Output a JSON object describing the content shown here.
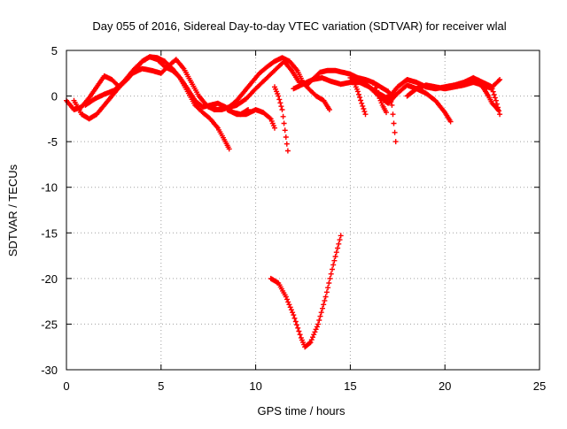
{
  "chart_data": {
    "type": "scatter",
    "title": "Day 055 of 2016, Sidereal Day-to-day VTEC variation (SDTVAR) for receiver wlal",
    "xlabel": "GPS time / hours",
    "ylabel": "SDTVAR / TECUs",
    "xlim": [
      0,
      25
    ],
    "ylim": [
      -30,
      5
    ],
    "xticks": [
      0,
      5,
      10,
      15,
      20,
      25
    ],
    "yticks": [
      5,
      0,
      -5,
      -10,
      -15,
      -20,
      -25,
      -30
    ],
    "grid": true,
    "marker": "+",
    "color": "#ff0000",
    "series": [
      {
        "name": "wlal",
        "tracks": [
          [
            [
              0.0,
              -0.5
            ],
            [
              0.4,
              -1.5
            ],
            [
              0.8,
              -1.2
            ],
            [
              1.2,
              -0.2
            ],
            [
              1.6,
              1.0
            ],
            [
              2.0,
              2.2
            ],
            [
              2.4,
              1.8
            ],
            [
              2.8,
              1.0
            ],
            [
              3.2,
              1.8
            ],
            [
              3.6,
              2.8
            ],
            [
              4.0,
              3.8
            ],
            [
              4.4,
              4.3
            ],
            [
              4.8,
              4.0
            ],
            [
              5.2,
              3.2
            ],
            [
              5.6,
              2.8
            ],
            [
              6.0,
              2.0
            ],
            [
              6.4,
              0.8
            ],
            [
              6.8,
              -0.5
            ],
            [
              7.2,
              -1.2
            ],
            [
              7.6,
              -1.0
            ],
            [
              8.0,
              -0.8
            ],
            [
              8.4,
              -1.2
            ],
            [
              8.8,
              -1.8
            ],
            [
              9.2,
              -2.0
            ],
            [
              9.6,
              -1.5
            ]
          ],
          [
            [
              0.4,
              -0.5
            ],
            [
              0.8,
              -2.0
            ],
            [
              1.2,
              -2.5
            ],
            [
              1.6,
              -2.0
            ],
            [
              2.0,
              -1.0
            ],
            [
              2.4,
              0.0
            ],
            [
              2.8,
              1.0
            ],
            [
              3.2,
              2.0
            ],
            [
              3.6,
              3.0
            ],
            [
              4.0,
              3.8
            ],
            [
              4.4,
              4.3
            ],
            [
              4.8,
              4.2
            ],
            [
              5.2,
              3.8
            ],
            [
              5.6,
              3.0
            ],
            [
              6.0,
              2.0
            ],
            [
              6.4,
              0.5
            ],
            [
              6.8,
              -1.0
            ],
            [
              7.2,
              -1.8
            ],
            [
              7.6,
              -2.5
            ],
            [
              8.0,
              -3.5
            ],
            [
              8.4,
              -5.0
            ],
            [
              8.6,
              -5.8
            ]
          ],
          [
            [
              1.0,
              -1.0
            ],
            [
              1.5,
              -0.3
            ],
            [
              2.0,
              0.2
            ],
            [
              2.5,
              0.6
            ],
            [
              3.0,
              1.5
            ],
            [
              3.5,
              2.5
            ],
            [
              4.0,
              3.0
            ],
            [
              4.5,
              2.8
            ],
            [
              5.0,
              2.5
            ],
            [
              5.5,
              3.5
            ],
            [
              5.8,
              4.0
            ],
            [
              6.2,
              3.0
            ],
            [
              6.6,
              1.5
            ],
            [
              7.0,
              0.0
            ],
            [
              7.4,
              -1.0
            ],
            [
              7.8,
              -1.5
            ],
            [
              8.2,
              -1.5
            ],
            [
              8.6,
              -1.2
            ],
            [
              9.0,
              -0.5
            ],
            [
              9.4,
              0.5
            ],
            [
              9.8,
              1.5
            ],
            [
              10.2,
              2.5
            ],
            [
              10.6,
              3.2
            ],
            [
              11.0,
              3.8
            ],
            [
              11.4,
              4.2
            ],
            [
              11.8,
              3.8
            ],
            [
              12.2,
              2.8
            ],
            [
              12.5,
              1.5
            ],
            [
              12.8,
              0.8
            ],
            [
              13.2,
              0.0
            ],
            [
              13.6,
              -0.5
            ],
            [
              13.9,
              -1.5
            ]
          ],
          [
            [
              7.5,
              -1.2
            ],
            [
              8.0,
              -1.5
            ],
            [
              8.5,
              -1.3
            ],
            [
              9.0,
              -1.0
            ],
            [
              9.5,
              -0.3
            ],
            [
              10.0,
              0.8
            ],
            [
              10.5,
              1.8
            ],
            [
              11.0,
              2.8
            ],
            [
              11.5,
              3.8
            ],
            [
              11.9,
              2.8
            ],
            [
              12.3,
              1.5
            ],
            [
              12.7,
              1.2
            ],
            [
              13.0,
              1.8
            ],
            [
              13.4,
              2.6
            ],
            [
              13.8,
              2.8
            ],
            [
              14.2,
              2.8
            ],
            [
              14.6,
              2.6
            ],
            [
              15.0,
              2.4
            ],
            [
              15.4,
              2.0
            ],
            [
              15.8,
              1.8
            ],
            [
              16.2,
              1.5
            ],
            [
              16.6,
              1.0
            ],
            [
              17.0,
              0.5
            ],
            [
              17.2,
              0.0
            ]
          ],
          [
            [
              8.5,
              -1.5
            ],
            [
              9.0,
              -2.0
            ],
            [
              9.5,
              -2.0
            ],
            [
              10.0,
              -1.5
            ],
            [
              10.4,
              -1.8
            ],
            [
              10.8,
              -2.5
            ],
            [
              11.0,
              -3.5
            ]
          ],
          [
            [
              11.0,
              1.0
            ],
            [
              11.2,
              0.0
            ],
            [
              11.4,
              -1.5
            ],
            [
              11.5,
              -3.0
            ],
            [
              11.6,
              -4.5
            ],
            [
              11.7,
              -6.0
            ]
          ],
          [
            [
              10.8,
              -20.0
            ],
            [
              11.2,
              -20.5
            ],
            [
              11.6,
              -22.0
            ],
            [
              12.0,
              -24.0
            ],
            [
              12.4,
              -26.5
            ],
            [
              12.6,
              -27.5
            ],
            [
              12.9,
              -27.0
            ],
            [
              13.3,
              -25.0
            ],
            [
              13.7,
              -22.0
            ],
            [
              14.1,
              -18.5
            ],
            [
              14.5,
              -15.3
            ]
          ],
          [
            [
              12.0,
              0.8
            ],
            [
              12.5,
              1.3
            ],
            [
              13.0,
              1.8
            ],
            [
              13.5,
              2.0
            ],
            [
              14.0,
              1.6
            ],
            [
              14.5,
              1.3
            ],
            [
              15.0,
              1.5
            ],
            [
              15.5,
              1.5
            ],
            [
              16.0,
              1.0
            ],
            [
              16.5,
              0.0
            ],
            [
              17.0,
              -0.8
            ],
            [
              17.5,
              0.3
            ],
            [
              18.0,
              1.2
            ],
            [
              18.5,
              0.8
            ],
            [
              19.0,
              0.3
            ],
            [
              19.5,
              -0.5
            ],
            [
              20.0,
              -1.8
            ],
            [
              20.3,
              -2.8
            ]
          ],
          [
            [
              15.0,
              2.0
            ],
            [
              15.5,
              1.8
            ],
            [
              16.0,
              1.0
            ],
            [
              16.5,
              0.3
            ],
            [
              17.0,
              -0.3
            ],
            [
              17.5,
              1.0
            ],
            [
              18.0,
              1.8
            ],
            [
              18.5,
              1.5
            ],
            [
              19.0,
              1.0
            ],
            [
              19.5,
              0.8
            ],
            [
              20.0,
              1.0
            ],
            [
              20.5,
              1.2
            ],
            [
              21.0,
              1.5
            ],
            [
              21.5,
              2.0
            ],
            [
              22.0,
              1.5
            ],
            [
              22.5,
              1.0
            ],
            [
              22.9,
              1.8
            ]
          ],
          [
            [
              17.0,
              0.5
            ],
            [
              17.2,
              -1.0
            ],
            [
              17.3,
              -3.0
            ],
            [
              17.4,
              -5.0
            ]
          ],
          [
            [
              15.2,
              1.5
            ],
            [
              15.4,
              0.5
            ],
            [
              15.6,
              -0.8
            ],
            [
              15.8,
              -2.0
            ]
          ],
          [
            [
              16.3,
              1.2
            ],
            [
              16.5,
              0.0
            ],
            [
              16.7,
              -1.0
            ],
            [
              16.9,
              -1.8
            ]
          ],
          [
            [
              18.0,
              0.0
            ],
            [
              18.5,
              0.8
            ],
            [
              19.0,
              1.2
            ],
            [
              19.5,
              1.0
            ],
            [
              20.0,
              0.8
            ],
            [
              20.5,
              1.0
            ],
            [
              21.0,
              1.2
            ],
            [
              21.5,
              1.5
            ],
            [
              22.0,
              1.2
            ],
            [
              22.5,
              0.8
            ],
            [
              22.7,
              -0.5
            ],
            [
              22.9,
              -2.0
            ]
          ],
          [
            [
              21.5,
              1.8
            ],
            [
              22.0,
              1.0
            ],
            [
              22.3,
              0.0
            ],
            [
              22.5,
              -0.8
            ],
            [
              22.8,
              -1.5
            ]
          ]
        ]
      }
    ]
  }
}
